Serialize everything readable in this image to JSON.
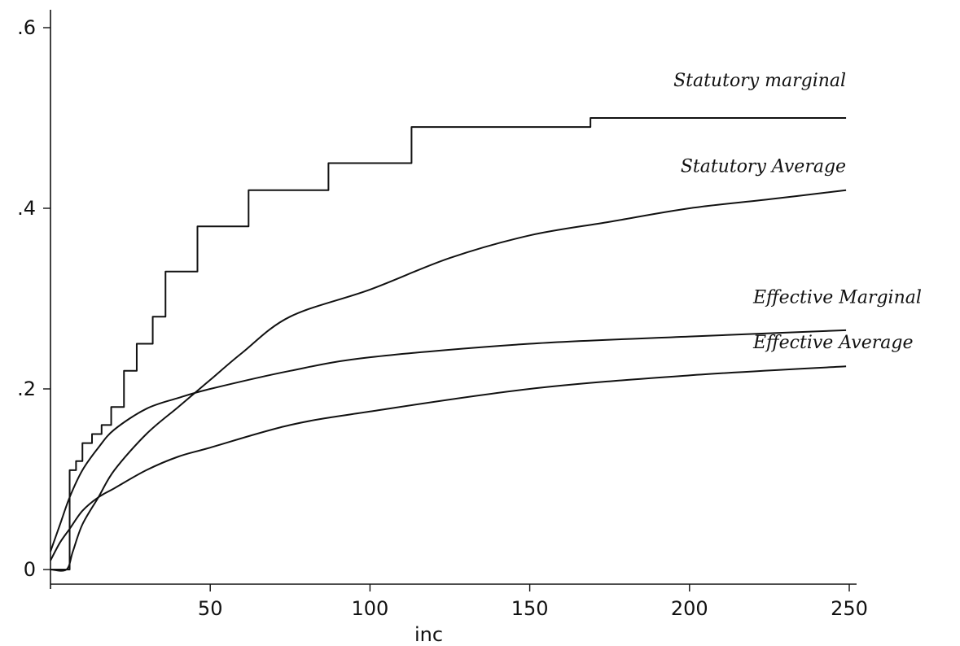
{
  "chart_data": {
    "type": "line",
    "title": "",
    "xlabel": "inc",
    "ylabel": "",
    "xlim": [
      0,
      250
    ],
    "ylim": [
      0,
      0.6
    ],
    "grid": false,
    "legend": "none",
    "x_ticks": [
      {
        "value": 50,
        "label": "50"
      },
      {
        "value": 100,
        "label": "100"
      },
      {
        "value": 150,
        "label": "150"
      },
      {
        "value": 200,
        "label": "200"
      },
      {
        "value": 250,
        "label": "250"
      }
    ],
    "y_ticks": [
      {
        "value": 0,
        "label": "0"
      },
      {
        "value": 0.2,
        "label": ".2"
      },
      {
        "value": 0.4,
        "label": ".4"
      },
      {
        "value": 0.6,
        "label": ".6"
      }
    ],
    "series": [
      {
        "name": "Statutory marginal",
        "key": "statutory-marginal",
        "step": true,
        "points": [
          [
            0,
            0
          ],
          [
            5,
            0
          ],
          [
            6,
            0.11
          ],
          [
            8,
            0.12
          ],
          [
            10,
            0.14
          ],
          [
            13,
            0.15
          ],
          [
            16,
            0.16
          ],
          [
            19,
            0.18
          ],
          [
            23,
            0.22
          ],
          [
            27,
            0.25
          ],
          [
            32,
            0.28
          ],
          [
            36,
            0.33
          ],
          [
            46,
            0.38
          ],
          [
            62,
            0.42
          ],
          [
            87,
            0.45
          ],
          [
            113,
            0.49
          ],
          [
            169,
            0.5
          ],
          [
            249,
            0.5
          ]
        ]
      },
      {
        "name": "Statutory average",
        "key": "statutory-average",
        "step": false,
        "points": [
          [
            0,
            0
          ],
          [
            5,
            0
          ],
          [
            7,
            0.02
          ],
          [
            10,
            0.05
          ],
          [
            15,
            0.08
          ],
          [
            20,
            0.11
          ],
          [
            30,
            0.15
          ],
          [
            40,
            0.18
          ],
          [
            50,
            0.21
          ],
          [
            60,
            0.24
          ],
          [
            75,
            0.28
          ],
          [
            100,
            0.31
          ],
          [
            125,
            0.345
          ],
          [
            150,
            0.37
          ],
          [
            175,
            0.385
          ],
          [
            200,
            0.4
          ],
          [
            225,
            0.41
          ],
          [
            249,
            0.42
          ]
        ]
      },
      {
        "name": "Effective marginal",
        "key": "effective-marginal",
        "step": false,
        "points": [
          [
            0,
            0.02
          ],
          [
            3,
            0.05
          ],
          [
            6,
            0.08
          ],
          [
            10,
            0.11
          ],
          [
            15,
            0.135
          ],
          [
            20,
            0.155
          ],
          [
            30,
            0.178
          ],
          [
            40,
            0.19
          ],
          [
            50,
            0.2
          ],
          [
            75,
            0.22
          ],
          [
            100,
            0.235
          ],
          [
            150,
            0.25
          ],
          [
            200,
            0.258
          ],
          [
            249,
            0.265
          ]
        ]
      },
      {
        "name": "Effective average",
        "key": "effective-average",
        "step": false,
        "points": [
          [
            0,
            0.01
          ],
          [
            3,
            0.03
          ],
          [
            6,
            0.045
          ],
          [
            10,
            0.065
          ],
          [
            15,
            0.08
          ],
          [
            20,
            0.09
          ],
          [
            30,
            0.11
          ],
          [
            40,
            0.125
          ],
          [
            50,
            0.135
          ],
          [
            75,
            0.16
          ],
          [
            100,
            0.175
          ],
          [
            150,
            0.2
          ],
          [
            200,
            0.215
          ],
          [
            249,
            0.225
          ]
        ]
      }
    ],
    "annotations": [
      {
        "series_key": "statutory-marginal",
        "text": "Statutory marginal",
        "anchor_x": 249,
        "anchor_y": 0.535,
        "align": "end"
      },
      {
        "series_key": "statutory-average",
        "text": "Statutory Average",
        "anchor_x": 249,
        "anchor_y": 0.44,
        "align": "end"
      },
      {
        "series_key": "effective-marginal",
        "text": "Effective Marginal",
        "anchor_x": 249,
        "anchor_y": 0.295,
        "align": "start"
      },
      {
        "series_key": "effective-average",
        "text": "Effective Average",
        "anchor_x": 249,
        "anchor_y": 0.245,
        "align": "start"
      }
    ]
  }
}
